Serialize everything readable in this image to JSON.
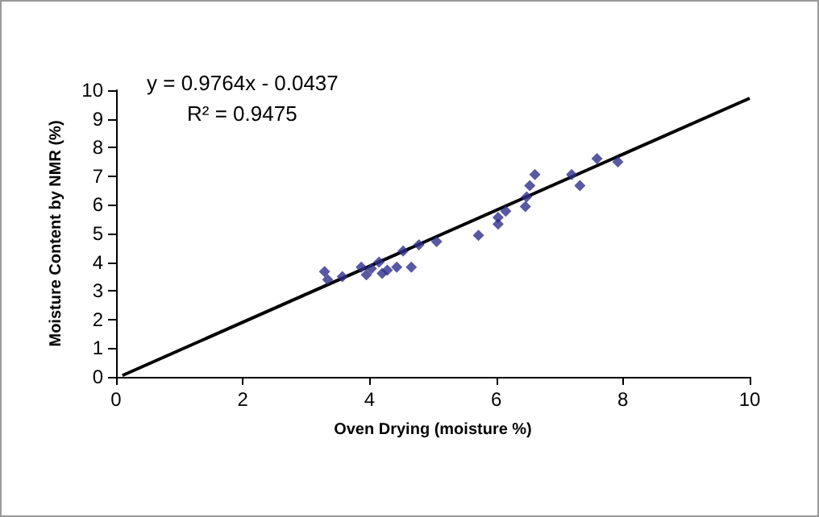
{
  "chart_data": {
    "type": "scatter",
    "xlabel": "Oven Drying (moisture %)",
    "ylabel": "Moisture Content by NMR (%)",
    "annotations": [
      "y = 0.9764x - 0.0437",
      "R² = 0.9475"
    ],
    "xlim": [
      0,
      10
    ],
    "ylim": [
      0,
      10
    ],
    "xticks": [
      0,
      2,
      4,
      6,
      8,
      10
    ],
    "yticks": [
      0,
      1,
      2,
      3,
      4,
      5,
      6,
      7,
      8,
      9,
      10
    ],
    "grid": false,
    "marker": "diamond",
    "series": [
      {
        "color": "#2e2e8c",
        "x": [
          3.29,
          3.34,
          3.57,
          3.87,
          3.95,
          4.03,
          4.15,
          4.2,
          4.28,
          4.43,
          4.66,
          4.53,
          4.78,
          5.06,
          5.72,
          6.03,
          6.03,
          6.15,
          6.46,
          6.48,
          6.53,
          6.61,
          7.19,
          7.32,
          7.59,
          7.92
        ],
        "values": [
          3.67,
          3.39,
          3.5,
          3.83,
          3.56,
          3.78,
          4.0,
          3.61,
          3.72,
          3.83,
          3.83,
          4.39,
          4.61,
          4.72,
          4.94,
          5.33,
          5.56,
          5.78,
          5.94,
          6.28,
          6.67,
          7.06,
          7.06,
          6.67,
          7.61,
          7.5
        ]
      },
      {
        "type": "line",
        "color": "#000000",
        "marker": "none",
        "x": [
          0.1,
          10
        ],
        "values": [
          0.05,
          9.72
        ]
      }
    ]
  }
}
